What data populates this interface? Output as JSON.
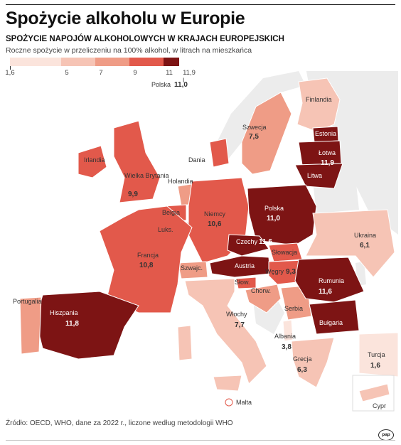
{
  "title": "Spożycie alkoholu w Europie",
  "subtitle": "SPOŻYCIE NAPOJÓW ALKOHOLOWYCH W KRAJACH EUROPEJSKICH",
  "description": "Roczne spożycie w przeliczeniu na 100% alkohol, w litrach na mieszkańca",
  "legend": {
    "ticks": [
      "1,6",
      "5",
      "7",
      "9",
      "11",
      "11,9 l"
    ],
    "colors": [
      "#fbe4dc",
      "#f6c4b5",
      "#ef9c86",
      "#e2594b",
      "#7d1414"
    ]
  },
  "source": "Źródło: OECD, WHO, dane za 2022 r., liczone według metodologii WHO",
  "logo": "pap",
  "countries": {
    "finlandia": {
      "name": "Finlandia"
    },
    "szwecja": {
      "name": "Szwecja",
      "value": "7,5"
    },
    "estonia": {
      "name": "Estonia"
    },
    "lotwa": {
      "name": "Łotwa",
      "value": "11,9"
    },
    "litwa": {
      "name": "Litwa"
    },
    "irlandia": {
      "name": "Irlandia"
    },
    "wielka_brytania": {
      "name": "Wielka Brytania",
      "value": "9,9"
    },
    "dania": {
      "name": "Dania"
    },
    "holandia": {
      "name": "Holandia"
    },
    "belgia": {
      "name": "Belgia"
    },
    "luksemburg": {
      "name": "Luks."
    },
    "niemcy": {
      "name": "Niemcy",
      "value": "10,6"
    },
    "polska": {
      "name": "Polska",
      "value": "11,0"
    },
    "czechy": {
      "name": "Czechy",
      "value": "11,6"
    },
    "slowacja": {
      "name": "Słowacja"
    },
    "austria": {
      "name": "Austria"
    },
    "szwajcaria": {
      "name": "Szwajc."
    },
    "wegry": {
      "name": "Węgry",
      "value": "9,3"
    },
    "slowenia": {
      "name": "Słow."
    },
    "chorwacja": {
      "name": "Chorw."
    },
    "serbia": {
      "name": "Serbia"
    },
    "rumunia": {
      "name": "Rumunia",
      "value": "11,6"
    },
    "bulgaria": {
      "name": "Bułgaria"
    },
    "ukraina": {
      "name": "Ukraina",
      "value": "6,1"
    },
    "francja": {
      "name": "Francja",
      "value": "10,8"
    },
    "hiszpania": {
      "name": "Hiszpania",
      "value": "11,8"
    },
    "portugalia": {
      "name": "Portugalia"
    },
    "wlochy": {
      "name": "Włochy",
      "value": "7,7"
    },
    "albania": {
      "name": "Albania",
      "value": "3,8"
    },
    "grecja": {
      "name": "Grecja",
      "value": "6,3"
    },
    "turcja": {
      "name": "Turcja",
      "value": "1,6"
    },
    "malta": {
      "name": "Malta"
    },
    "cypr": {
      "name": "Cypr"
    }
  },
  "callout": {
    "name": "Polska",
    "value": "11,0"
  }
}
